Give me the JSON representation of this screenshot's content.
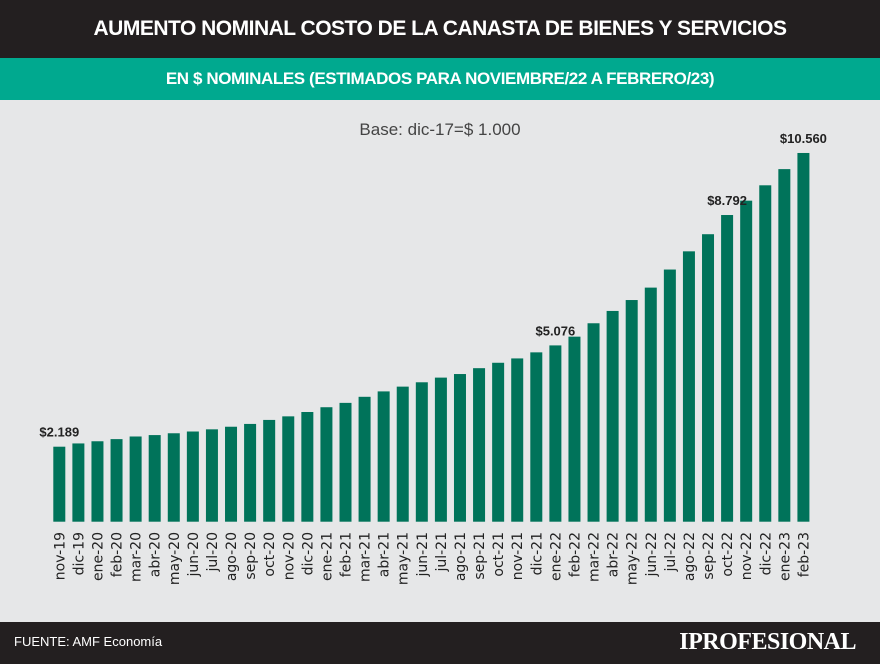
{
  "header": {
    "title": "AUMENTO NOMINAL COSTO DE LA CANASTA DE BIENES Y SERVICIOS",
    "subtitle": "EN $ NOMINALES (ESTIMADOS PARA NOVIEMBRE/22 A FEBRERO/23)"
  },
  "footer": {
    "source": "FUENTE: AMF Economía",
    "logo": "IPROFESIONAL"
  },
  "colors": {
    "bar": "#00735a",
    "header": "#231f20",
    "accent": "#00a98f",
    "background": "#e6e7e8"
  },
  "chart_data": {
    "type": "bar",
    "title": "AUMENTO NOMINAL COSTO DE LA CANASTA DE BIENES Y SERVICIOS",
    "subtitle": "EN $ NOMINALES (ESTIMADOS PARA NOVIEMBRE/22 A FEBRERO/23)",
    "annotation": "Base: dic-17=$ 1.000",
    "xlabel": "",
    "ylabel": "",
    "grid": false,
    "categories": [
      "nov-19",
      "dic-19",
      "ene-20",
      "feb-20",
      "mar-20",
      "abr-20",
      "may-20",
      "jun-20",
      "jul-20",
      "ago-20",
      "sep-20",
      "oct-20",
      "nov-20",
      "dic-20",
      "ene-21",
      "feb-21",
      "mar-21",
      "abr-21",
      "may-21",
      "jun-21",
      "jul-21",
      "ago-21",
      "sep-21",
      "oct-21",
      "nov-21",
      "dic-21",
      "ene-22",
      "feb-22",
      "mar-22",
      "abr-22",
      "may-22",
      "jun-22",
      "jul-22",
      "ago-22",
      "sep-22",
      "oct-22",
      "nov-22",
      "dic-22",
      "ene-23",
      "feb-23"
    ],
    "values": [
      2189,
      2282,
      2344,
      2405,
      2480,
      2520,
      2572,
      2622,
      2684,
      2758,
      2838,
      2952,
      3054,
      3178,
      3314,
      3438,
      3611,
      3765,
      3901,
      4025,
      4158,
      4260,
      4427,
      4581,
      4705,
      4878,
      5076,
      5325,
      5707,
      6058,
      6369,
      6723,
      7238,
      7757,
      8245,
      8792,
      9201,
      9639,
      10100,
      10560
    ],
    "data_labels": [
      {
        "category": "nov-19",
        "text": "$2.189"
      },
      {
        "category": "ene-22",
        "text": "$5.076"
      },
      {
        "category": "oct-22",
        "text": "$8.792"
      },
      {
        "category": "feb-23",
        "text": "$10.560"
      }
    ]
  }
}
